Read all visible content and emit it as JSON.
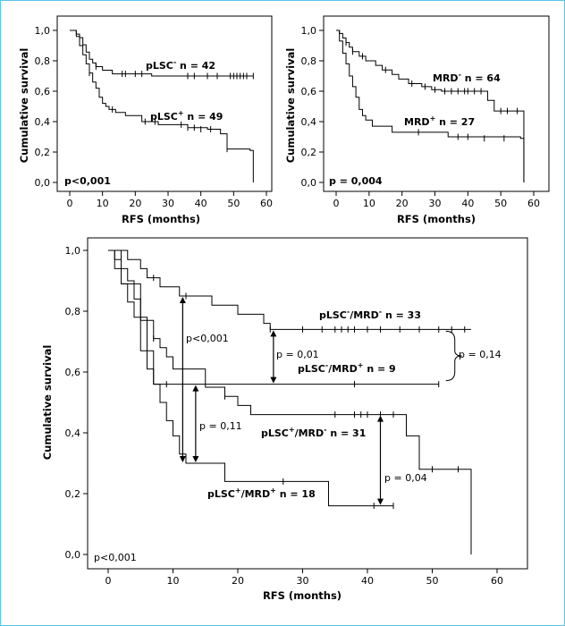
{
  "chart_data": [
    {
      "type": "line",
      "step": true,
      "xlabel": "RFS (months)",
      "ylabel": "Cumulative survival",
      "xlim": [
        -3,
        63
      ],
      "ylim": [
        -0.05,
        1.05
      ],
      "xticks": [
        "0",
        "10",
        "20",
        "30",
        "40",
        "50",
        "60"
      ],
      "yticks": [
        "0,0",
        "0,2",
        "0,4",
        "0,6",
        "0,8",
        "1,0"
      ],
      "p_value": "p<0,001",
      "series": [
        {
          "label_main": "pLSC",
          "label_sup": "-",
          "label_n": " n = 42",
          "steps": [
            [
              0,
              1.0
            ],
            [
              2,
              0.976
            ],
            [
              3,
              0.952
            ],
            [
              4,
              0.905
            ],
            [
              5,
              0.857
            ],
            [
              6,
              0.81
            ],
            [
              7,
              0.786
            ],
            [
              8,
              0.762
            ],
            [
              10,
              0.738
            ],
            [
              13,
              0.714
            ],
            [
              25,
              0.7
            ],
            [
              56,
              0.7
            ]
          ],
          "censored": [
            [
              8,
              0.762
            ],
            [
              16,
              0.714
            ],
            [
              17,
              0.714
            ],
            [
              20,
              0.714
            ],
            [
              22,
              0.714
            ],
            [
              36,
              0.7
            ],
            [
              38,
              0.7
            ],
            [
              42,
              0.7
            ],
            [
              45,
              0.7
            ],
            [
              49,
              0.7
            ],
            [
              50,
              0.7
            ],
            [
              51,
              0.7
            ],
            [
              52,
              0.7
            ],
            [
              53,
              0.7
            ],
            [
              54,
              0.7
            ],
            [
              56,
              0.7
            ]
          ]
        },
        {
          "label_main": "pLSC",
          "label_sup": "+",
          "label_n": " n = 49",
          "steps": [
            [
              0,
              1.0
            ],
            [
              2,
              0.96
            ],
            [
              3,
              0.9
            ],
            [
              4,
              0.84
            ],
            [
              5,
              0.78
            ],
            [
              6,
              0.72
            ],
            [
              7,
              0.66
            ],
            [
              8,
              0.62
            ],
            [
              9,
              0.56
            ],
            [
              10,
              0.52
            ],
            [
              11,
              0.5
            ],
            [
              12,
              0.48
            ],
            [
              14,
              0.46
            ],
            [
              17,
              0.44
            ],
            [
              22,
              0.4
            ],
            [
              27,
              0.38
            ],
            [
              36,
              0.36
            ],
            [
              42,
              0.35
            ],
            [
              46,
              0.32
            ],
            [
              48,
              0.22
            ],
            [
              55,
              0.21
            ],
            [
              56,
              0.0
            ]
          ],
          "censored": [
            [
              6,
              0.72
            ],
            [
              13,
              0.48
            ],
            [
              23,
              0.4
            ],
            [
              26,
              0.4
            ],
            [
              34,
              0.38
            ],
            [
              36,
              0.36
            ],
            [
              38,
              0.36
            ],
            [
              40,
              0.35
            ],
            [
              43,
              0.35
            ],
            [
              48,
              0.22
            ]
          ]
        }
      ]
    },
    {
      "type": "line",
      "step": true,
      "xlabel": "RFS (months)",
      "ylabel": "Cumulative survival",
      "xlim": [
        -3,
        63
      ],
      "ylim": [
        -0.05,
        1.05
      ],
      "xticks": [
        "0",
        "10",
        "20",
        "30",
        "40",
        "50",
        "60"
      ],
      "yticks": [
        "0,0",
        "0,2",
        "0,4",
        "0,6",
        "0,8",
        "1,0"
      ],
      "p_value": "p = 0,004",
      "series": [
        {
          "label_main": "MRD",
          "label_sup": "-",
          "label_n": " n = 64",
          "steps": [
            [
              0,
              1.0
            ],
            [
              1,
              0.98
            ],
            [
              2,
              0.95
            ],
            [
              3,
              0.92
            ],
            [
              4,
              0.89
            ],
            [
              5,
              0.86
            ],
            [
              7,
              0.83
            ],
            [
              9,
              0.8
            ],
            [
              12,
              0.77
            ],
            [
              14,
              0.74
            ],
            [
              17,
              0.71
            ],
            [
              19,
              0.68
            ],
            [
              22,
              0.65
            ],
            [
              26,
              0.63
            ],
            [
              29,
              0.61
            ],
            [
              32,
              0.6
            ],
            [
              46,
              0.54
            ],
            [
              48,
              0.47
            ],
            [
              56,
              0.47
            ],
            [
              57,
              0.0
            ]
          ],
          "censored": [
            [
              3,
              0.92
            ],
            [
              5,
              0.86
            ],
            [
              8,
              0.83
            ],
            [
              15,
              0.74
            ],
            [
              23,
              0.65
            ],
            [
              27,
              0.63
            ],
            [
              30,
              0.61
            ],
            [
              33,
              0.6
            ],
            [
              35,
              0.6
            ],
            [
              37,
              0.6
            ],
            [
              39,
              0.6
            ],
            [
              40,
              0.6
            ],
            [
              42,
              0.6
            ],
            [
              44,
              0.6
            ],
            [
              50,
              0.47
            ],
            [
              52,
              0.47
            ],
            [
              55,
              0.47
            ]
          ]
        },
        {
          "label_main": "MRD",
          "label_sup": "+",
          "label_n": " n = 27",
          "steps": [
            [
              0,
              1.0
            ],
            [
              1,
              0.93
            ],
            [
              2,
              0.85
            ],
            [
              3,
              0.78
            ],
            [
              4,
              0.7
            ],
            [
              5,
              0.63
            ],
            [
              6,
              0.56
            ],
            [
              7,
              0.48
            ],
            [
              8,
              0.44
            ],
            [
              9,
              0.41
            ],
            [
              11,
              0.37
            ],
            [
              17,
              0.33
            ],
            [
              34,
              0.3
            ],
            [
              56,
              0.29
            ],
            [
              57,
              0.0
            ]
          ],
          "censored": [
            [
              25,
              0.33
            ],
            [
              37,
              0.3
            ],
            [
              40,
              0.3
            ],
            [
              45,
              0.29
            ],
            [
              51,
              0.29
            ]
          ]
        }
      ]
    },
    {
      "type": "line",
      "step": true,
      "xlabel": "RFS (months)",
      "ylabel": "Cumulative survival",
      "xlim": [
        -3,
        63
      ],
      "ylim": [
        -0.05,
        1.05
      ],
      "xticks": [
        "0",
        "10",
        "20",
        "30",
        "40",
        "50",
        "60"
      ],
      "yticks": [
        "0,0",
        "0,2",
        "0,4",
        "0,6",
        "0,8",
        "1,0"
      ],
      "p_value": "p<0,001",
      "series": [
        {
          "label_main": "pLSC",
          "label_sup": "-",
          "label_mid": "/MRD",
          "label_sup2": "-",
          "label_n": " n = 33",
          "steps": [
            [
              0,
              1.0
            ],
            [
              3,
              0.97
            ],
            [
              5,
              0.94
            ],
            [
              6,
              0.91
            ],
            [
              8,
              0.88
            ],
            [
              11,
              0.85
            ],
            [
              16,
              0.82
            ],
            [
              20,
              0.79
            ],
            [
              24,
              0.76
            ],
            [
              25,
              0.74
            ],
            [
              56,
              0.74
            ]
          ],
          "censored": [
            [
              7,
              0.91
            ],
            [
              12,
              0.85
            ],
            [
              25,
              0.74
            ],
            [
              30,
              0.74
            ],
            [
              33,
              0.74
            ],
            [
              35,
              0.74
            ],
            [
              36,
              0.74
            ],
            [
              37,
              0.74
            ],
            [
              38,
              0.74
            ],
            [
              40,
              0.74
            ],
            [
              42,
              0.74
            ],
            [
              45,
              0.74
            ],
            [
              48,
              0.74
            ],
            [
              51,
              0.74
            ],
            [
              53,
              0.74
            ],
            [
              55,
              0.74
            ]
          ]
        },
        {
          "label_main": "pLSC",
          "label_sup": "-",
          "label_mid": "/MRD",
          "label_sup2": "+",
          "label_n": " n = 9",
          "steps": [
            [
              0,
              1.0
            ],
            [
              2,
              0.89
            ],
            [
              5,
              0.78
            ],
            [
              6,
              0.67
            ],
            [
              7,
              0.56
            ],
            [
              51,
              0.56
            ]
          ],
          "censored": [
            [
              9,
              0.56
            ],
            [
              38,
              0.56
            ],
            [
              51,
              0.56
            ]
          ]
        },
        {
          "label_main": "pLSC",
          "label_sup": "+",
          "label_mid": "/MRD",
          "label_sup2": "-",
          "label_n": " n = 31",
          "steps": [
            [
              0,
              1.0
            ],
            [
              1,
              0.97
            ],
            [
              2,
              0.94
            ],
            [
              3,
              0.9
            ],
            [
              4,
              0.84
            ],
            [
              5,
              0.77
            ],
            [
              7,
              0.71
            ],
            [
              8,
              0.68
            ],
            [
              9,
              0.65
            ],
            [
              10,
              0.61
            ],
            [
              15,
              0.55
            ],
            [
              18,
              0.52
            ],
            [
              20,
              0.49
            ],
            [
              22,
              0.46
            ],
            [
              44,
              0.46
            ],
            [
              46,
              0.39
            ],
            [
              48,
              0.28
            ],
            [
              55,
              0.28
            ],
            [
              56,
              0.0
            ]
          ],
          "censored": [
            [
              7,
              0.71
            ],
            [
              18,
              0.52
            ],
            [
              35,
              0.46
            ],
            [
              38,
              0.46
            ],
            [
              39,
              0.46
            ],
            [
              40,
              0.46
            ],
            [
              42,
              0.46
            ],
            [
              44,
              0.46
            ],
            [
              50,
              0.28
            ],
            [
              54,
              0.28
            ]
          ]
        },
        {
          "label_main": "pLSC",
          "label_sup": "+",
          "label_mid": "/MRD",
          "label_sup2": "+",
          "label_n": " n = 18",
          "steps": [
            [
              0,
              1.0
            ],
            [
              1,
              0.94
            ],
            [
              2,
              0.89
            ],
            [
              3,
              0.83
            ],
            [
              4,
              0.78
            ],
            [
              5,
              0.67
            ],
            [
              6,
              0.61
            ],
            [
              7,
              0.56
            ],
            [
              8,
              0.5
            ],
            [
              9,
              0.44
            ],
            [
              10,
              0.39
            ],
            [
              11,
              0.33
            ],
            [
              12,
              0.3
            ],
            [
              18,
              0.24
            ],
            [
              34,
              0.16
            ],
            [
              41,
              0.16
            ],
            [
              44,
              0.16
            ]
          ],
          "censored": [
            [
              27,
              0.24
            ],
            [
              41,
              0.16
            ],
            [
              44,
              0.16
            ]
          ]
        }
      ],
      "comparisons": [
        {
          "label": "p<0,001",
          "x": 11.5,
          "y1": 0.3,
          "y2": 0.85
        },
        {
          "label": "p = 0,01",
          "x": 25.5,
          "y1": 0.56,
          "y2": 0.74
        },
        {
          "label": "p = 0,11",
          "x": 13.5,
          "y1": 0.3,
          "y2": 0.56
        },
        {
          "label": "p = 0,04",
          "x": 42,
          "y1": 0.16,
          "y2": 0.46
        },
        {
          "label": "p = 0,14",
          "brace": true,
          "x": 51,
          "y1": 0.56,
          "y2": 0.74
        }
      ]
    }
  ]
}
